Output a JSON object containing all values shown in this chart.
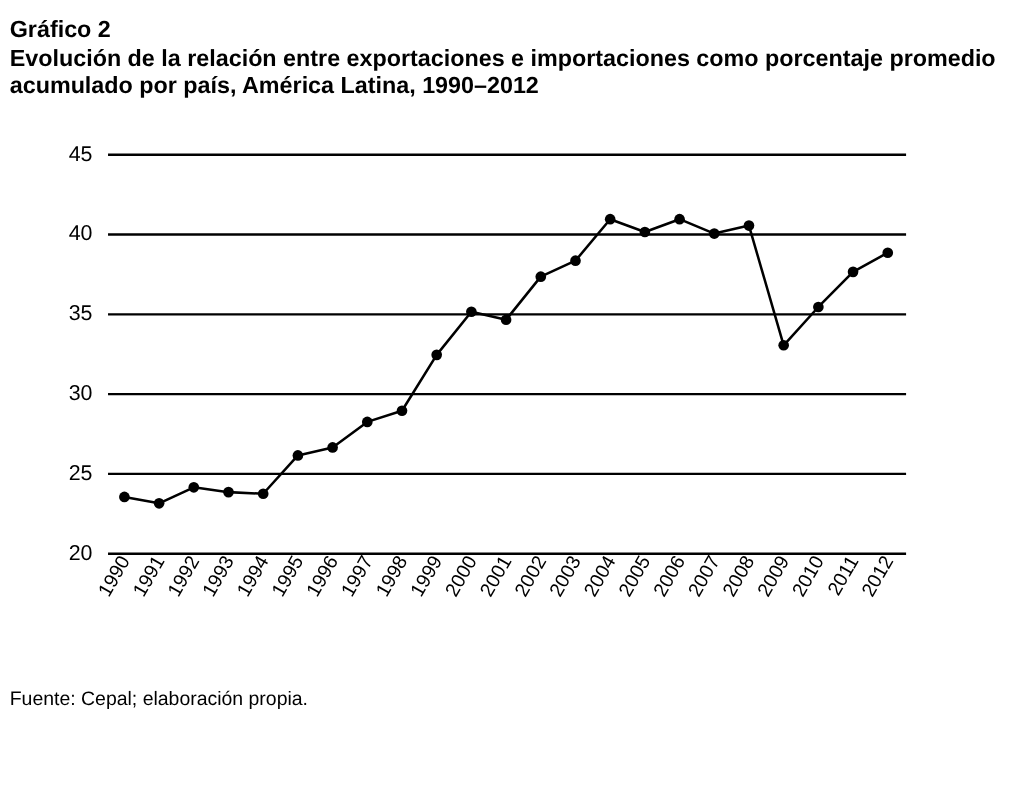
{
  "chart_data": {
    "type": "line",
    "title": "Gráfico 2",
    "subtitle": "Evolución de la relación entre exportaciones e importaciones como porcentaje promedio acumulado por país, América Latina, 1990–2012",
    "categories": [
      "1990",
      "1991",
      "1992",
      "1993",
      "1994",
      "1995",
      "1996",
      "1997",
      "1998",
      "1999",
      "2000",
      "2001",
      "2002",
      "2003",
      "2004",
      "2005",
      "2006",
      "2007",
      "2008",
      "2009",
      "2010",
      "2011",
      "2012"
    ],
    "series": [
      {
        "color": "#000000",
        "values": [
          23.5,
          23.1,
          24.1,
          23.8,
          23.7,
          26.1,
          26.6,
          28.2,
          28.9,
          32.4,
          35.1,
          34.6,
          37.3,
          38.3,
          40.9,
          40.1,
          40.9,
          40.0,
          40.5,
          33.0,
          35.4,
          37.6,
          38.8
        ]
      }
    ],
    "ylim": [
      20,
      45
    ],
    "yticks": [
      20,
      25,
      30,
      35,
      40,
      45
    ],
    "grid": "y",
    "marker": "circle",
    "line_style": "solid",
    "annotations": [
      "Fuente: Cepal; elaboración propia."
    ]
  }
}
